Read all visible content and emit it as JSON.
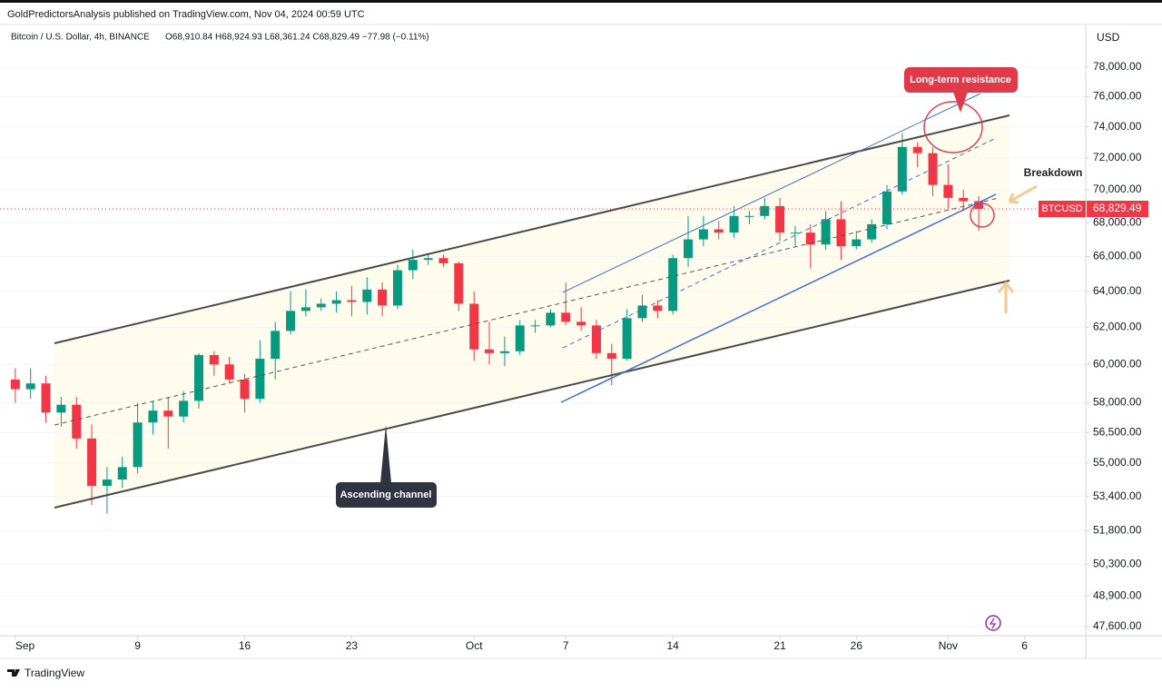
{
  "header": {
    "published": "GoldPredictorsAnalysis published on TradingView.com, Nov 04, 2024 00:59 UTC"
  },
  "chart_data": {
    "type": "candlestick",
    "title": "Bitcoin / U.S. Dollar, 4h, BINANCE",
    "ohlc_legend": "O68,910.84 H68,924.93 L68,361.24 C68,829.49 −77.98 (−0.11%)",
    "currency": "USD",
    "x": [
      "2024-09-01",
      "2024-09-02",
      "2024-09-03",
      "2024-09-04",
      "2024-09-05",
      "2024-09-06",
      "2024-09-07",
      "2024-09-08",
      "2024-09-09",
      "2024-09-10",
      "2024-09-11",
      "2024-09-12",
      "2024-09-13",
      "2024-09-14",
      "2024-09-15",
      "2024-09-16",
      "2024-09-17",
      "2024-09-18",
      "2024-09-19",
      "2024-09-20",
      "2024-09-21",
      "2024-09-22",
      "2024-09-23",
      "2024-09-24",
      "2024-09-25",
      "2024-09-26",
      "2024-09-27",
      "2024-09-28",
      "2024-09-29",
      "2024-09-30",
      "2024-10-01",
      "2024-10-02",
      "2024-10-03",
      "2024-10-04",
      "2024-10-05",
      "2024-10-06",
      "2024-10-07",
      "2024-10-08",
      "2024-10-09",
      "2024-10-10",
      "2024-10-11",
      "2024-10-12",
      "2024-10-13",
      "2024-10-14",
      "2024-10-15",
      "2024-10-16",
      "2024-10-17",
      "2024-10-18",
      "2024-10-19",
      "2024-10-20",
      "2024-10-21",
      "2024-10-22",
      "2024-10-23",
      "2024-10-24",
      "2024-10-25",
      "2024-10-26",
      "2024-10-27",
      "2024-10-28",
      "2024-10-29",
      "2024-10-30",
      "2024-10-31",
      "2024-11-01",
      "2024-11-02",
      "2024-11-03"
    ],
    "open": [
      59200,
      58700,
      59000,
      57500,
      57900,
      56200,
      53900,
      54200,
      54800,
      57000,
      57600,
      57300,
      58100,
      60500,
      60000,
      59200,
      58200,
      60300,
      61800,
      62900,
      63100,
      63300,
      63500,
      63400,
      64100,
      63200,
      65200,
      65800,
      65900,
      65600,
      63300,
      60800,
      60600,
      60700,
      62100,
      62100,
      62800,
      62300,
      62100,
      60600,
      60300,
      62500,
      63200,
      62900,
      65900,
      67000,
      67600,
      67400,
      68400,
      68400,
      69000,
      67400,
      67400,
      66700,
      68200,
      66600,
      67000,
      67900,
      69900,
      72700,
      72300,
      70300,
      69500,
      69300
    ],
    "high": [
      59800,
      59800,
      59400,
      58300,
      58300,
      56900,
      54800,
      55300,
      58000,
      58100,
      58300,
      58600,
      60600,
      60700,
      60400,
      59500,
      61300,
      62300,
      64000,
      64100,
      63600,
      64000,
      64300,
      64800,
      64500,
      65500,
      66400,
      66200,
      66100,
      65700,
      64000,
      62300,
      61500,
      62400,
      62400,
      63000,
      64500,
      63100,
      62400,
      61100,
      63000,
      63800,
      63500,
      66100,
      68400,
      68400,
      68100,
      69000,
      68700,
      69500,
      69500,
      67800,
      67900,
      68700,
      69300,
      67500,
      68200,
      70300,
      73600,
      73000,
      72700,
      71600,
      70000,
      69600
    ],
    "low": [
      58000,
      58200,
      57000,
      56800,
      55700,
      53000,
      52600,
      53800,
      54500,
      56400,
      55700,
      57000,
      57700,
      59400,
      59000,
      57500,
      58000,
      59200,
      61600,
      62600,
      62900,
      62800,
      62600,
      62700,
      62600,
      63000,
      64700,
      65500,
      65400,
      62900,
      60200,
      60000,
      59900,
      60500,
      61700,
      62000,
      62100,
      61800,
      60300,
      58900,
      60200,
      62300,
      62500,
      62700,
      65400,
      66600,
      67000,
      67100,
      67900,
      68200,
      66900,
      66600,
      65300,
      66400,
      65800,
      66400,
      66800,
      67600,
      69700,
      71400,
      69600,
      68800,
      68700,
      67500
    ],
    "close": [
      58700,
      59000,
      57500,
      57900,
      56200,
      53900,
      54200,
      54800,
      57000,
      57600,
      57300,
      58100,
      60500,
      60000,
      59200,
      58200,
      60300,
      61800,
      62900,
      63100,
      63300,
      63500,
      63400,
      64100,
      63200,
      65200,
      65800,
      65900,
      65600,
      63300,
      60800,
      60600,
      60700,
      62100,
      62100,
      62800,
      62300,
      62100,
      60600,
      60300,
      62500,
      63200,
      62900,
      65900,
      67000,
      67600,
      67400,
      68400,
      68400,
      69000,
      67400,
      67400,
      66700,
      68200,
      66600,
      67000,
      67900,
      69900,
      72700,
      72300,
      70300,
      69500,
      69300,
      68829.49
    ],
    "up_color": "#089981",
    "down_color": "#f23645",
    "log_scale": true,
    "ylim": [
      47220,
      80930
    ],
    "yticks": [
      {
        "value": 78000,
        "label": "78,000.00"
      },
      {
        "value": 76000,
        "label": "76,000.00"
      },
      {
        "value": 74000,
        "label": "74,000.00"
      },
      {
        "value": 72000,
        "label": "72,000.00"
      },
      {
        "value": 70000,
        "label": "70,000.00"
      },
      {
        "value": 68000,
        "label": "68,000.00"
      },
      {
        "value": 66000,
        "label": "66,000.00"
      },
      {
        "value": 64000,
        "label": "64,000.00"
      },
      {
        "value": 62000,
        "label": "62,000.00"
      },
      {
        "value": 60000,
        "label": "60,000.00"
      },
      {
        "value": 58000,
        "label": "58,000.00"
      },
      {
        "value": 56500,
        "label": "56,500.00"
      },
      {
        "value": 55000,
        "label": "55,000.00"
      },
      {
        "value": 53400,
        "label": "53,400.00"
      },
      {
        "value": 51800,
        "label": "51,800.00"
      },
      {
        "value": 50300,
        "label": "50,300.00"
      },
      {
        "value": 48900,
        "label": "48,900.00"
      },
      {
        "value": 47600,
        "label": "47,600.00"
      }
    ],
    "xlim": [
      "2024-08-31",
      "2024-11-10"
    ],
    "xticks": [
      {
        "value": "2024-09-01",
        "label": "Sep"
      },
      {
        "value": "2024-09-09",
        "label": "9"
      },
      {
        "value": "2024-09-16",
        "label": "16"
      },
      {
        "value": "2024-09-23",
        "label": "23"
      },
      {
        "value": "2024-10-01",
        "label": "Oct"
      },
      {
        "value": "2024-10-07",
        "label": "7"
      },
      {
        "value": "2024-10-14",
        "label": "14"
      },
      {
        "value": "2024-10-21",
        "label": "21"
      },
      {
        "value": "2024-10-26",
        "label": "26"
      },
      {
        "value": "2024-11-01",
        "label": "Nov"
      },
      {
        "value": "2024-11-06",
        "label": "6"
      }
    ],
    "last_price": {
      "symbol": "BTCUSD",
      "value": 68829.49,
      "label": "68,829.49",
      "color": "#f23645"
    },
    "annotations": {
      "resistance": "Long-term resistance",
      "breakdown": "Breakdown",
      "channel": "Ascending channel"
    }
  },
  "footer": {
    "brand": "TradingView"
  }
}
